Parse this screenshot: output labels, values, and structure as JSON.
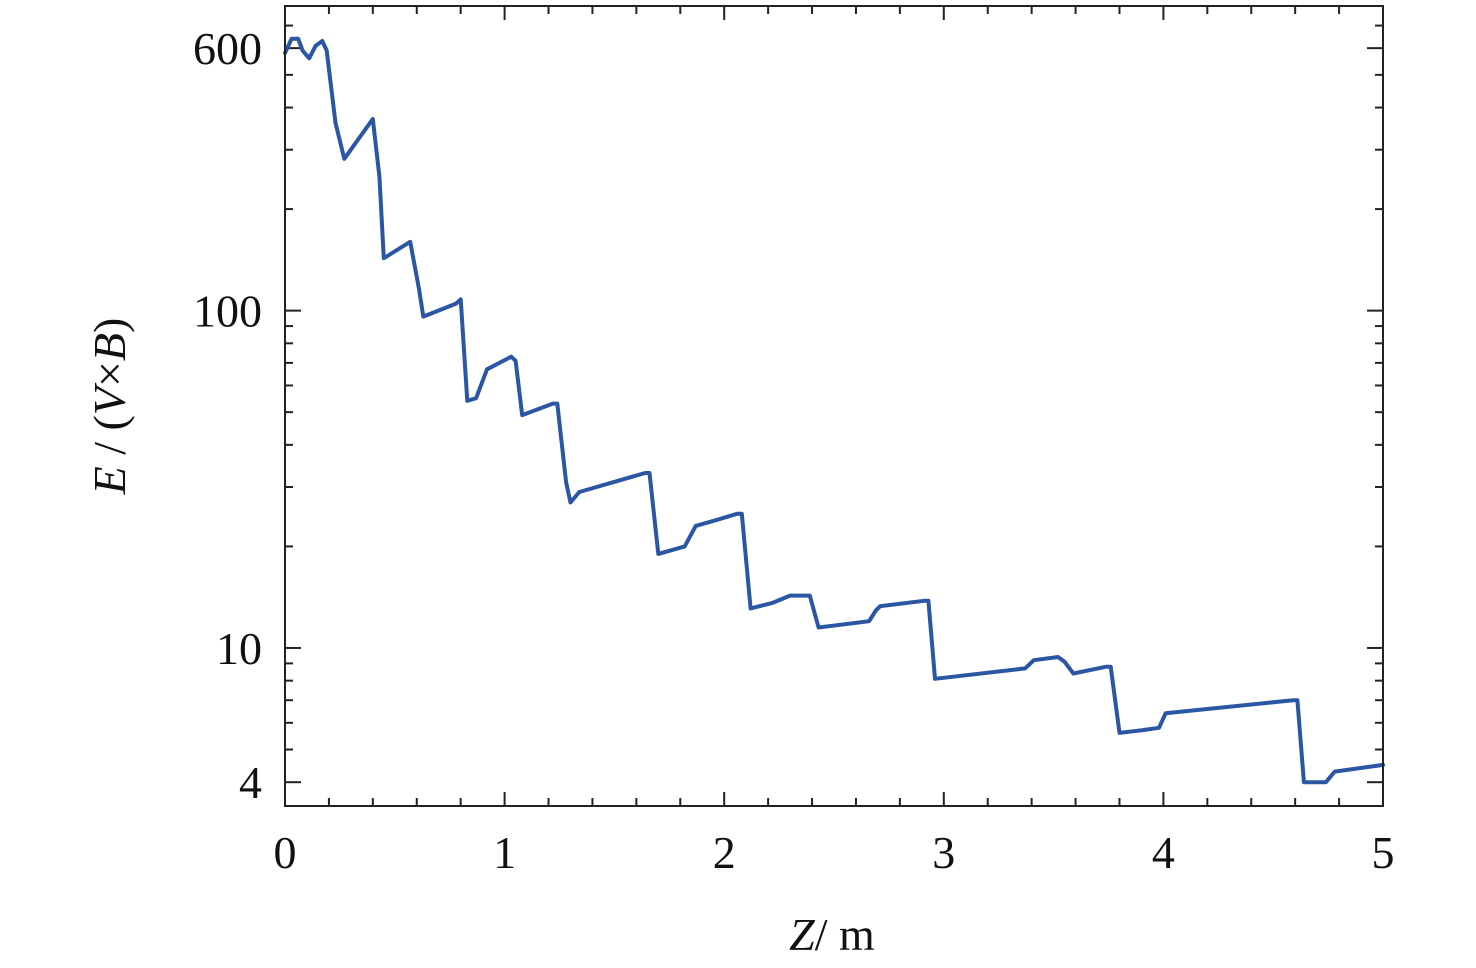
{
  "chart_data": {
    "type": "line",
    "xlabel_var": "Z",
    "xlabel_unit": "/  m",
    "ylabel_var": "E",
    "ylabel_sep": " / (",
    "ylabel_v": "V",
    "ylabel_times": "×",
    "ylabel_b": "B",
    "ylabel_close": ")",
    "xlim": [
      0,
      5
    ],
    "ylim": [
      3.4,
      800
    ],
    "yscale": "log",
    "grid": false,
    "legend": "none",
    "x_ticks": [
      0,
      1,
      2,
      3,
      4,
      5
    ],
    "x_tick_labels": [
      "0",
      "1",
      "2",
      "3",
      "4",
      "5"
    ],
    "y_ticks": [
      4,
      10,
      100,
      600
    ],
    "y_tick_labels": [
      "4",
      "10",
      "100",
      "600"
    ],
    "line_color": "#2a56a3",
    "series": [
      {
        "x": [
          0.0,
          0.03,
          0.06,
          0.08,
          0.11,
          0.14,
          0.17,
          0.19,
          0.23,
          0.27,
          0.4,
          0.43,
          0.45,
          0.57,
          0.61,
          0.63,
          0.78,
          0.8,
          0.83,
          0.87,
          0.92,
          1.03,
          1.05,
          1.08,
          1.22,
          1.24,
          1.28,
          1.3,
          1.34,
          1.64,
          1.66,
          1.7,
          1.82,
          1.87,
          1.97,
          2.06,
          2.08,
          2.12,
          2.22,
          2.3,
          2.39,
          2.43,
          2.66,
          2.69,
          2.71,
          2.91,
          2.93,
          2.96,
          3.37,
          3.41,
          3.52,
          3.55,
          3.59,
          3.74,
          3.76,
          3.8,
          3.9,
          3.98,
          4.01,
          4.59,
          4.61,
          4.64,
          4.74,
          4.78,
          5.0
        ],
        "y": [
          580,
          640,
          640,
          590,
          560,
          610,
          630,
          590,
          360,
          282,
          370,
          250,
          143,
          160,
          116,
          96,
          105,
          108,
          54,
          55,
          67,
          73,
          71,
          49,
          53,
          53,
          31,
          27,
          29,
          33,
          33,
          19,
          20,
          23,
          24,
          25,
          25,
          13.1,
          13.6,
          14.3,
          14.3,
          11.5,
          12.0,
          12.9,
          13.3,
          13.8,
          13.8,
          8.1,
          8.7,
          9.2,
          9.4,
          9.1,
          8.4,
          8.8,
          8.8,
          5.6,
          5.7,
          5.8,
          6.4,
          7.0,
          7.0,
          4.0,
          4.0,
          4.3,
          4.5
        ]
      }
    ]
  }
}
